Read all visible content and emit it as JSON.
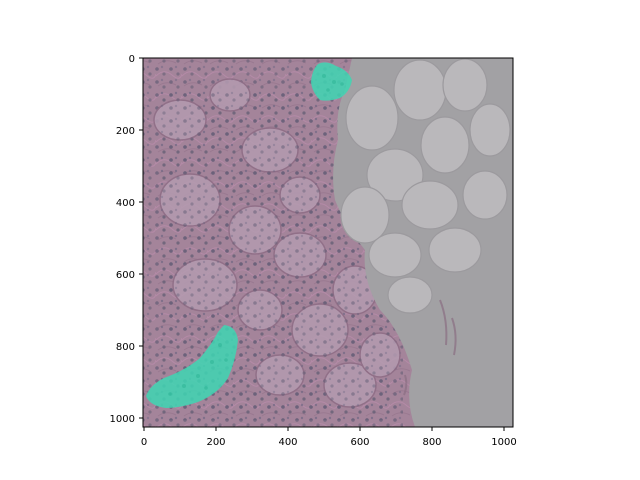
{
  "figure": {
    "type": "image-with-axes",
    "content": "histology tissue image (pink/purple stained kidney tissue with glomeruli, tubules, and adipose region) with teal segmentation mask overlay",
    "colors": {
      "background_white": "#ffffff",
      "tissue_base": "#a4849a",
      "tissue_dark": "#8a6a82",
      "nuclei": "#5f5a73",
      "adipose_bg": "#a0a0a0",
      "adipose_cell": "#b9b7ba",
      "mask_teal": "#3ed6b3"
    }
  },
  "axes": {
    "x_ticks": [
      "0",
      "200",
      "400",
      "600",
      "800",
      "1000"
    ],
    "y_ticks": [
      "0",
      "200",
      "400",
      "600",
      "800",
      "1000"
    ],
    "xlim": [
      0,
      1024
    ],
    "ylim_inverted": [
      0,
      1024
    ]
  },
  "masks": [
    {
      "name": "glomerulus-mask-top",
      "color": "#3ed6b3"
    },
    {
      "name": "glomerulus-mask-bottom-left",
      "color": "#3ed6b3"
    }
  ]
}
